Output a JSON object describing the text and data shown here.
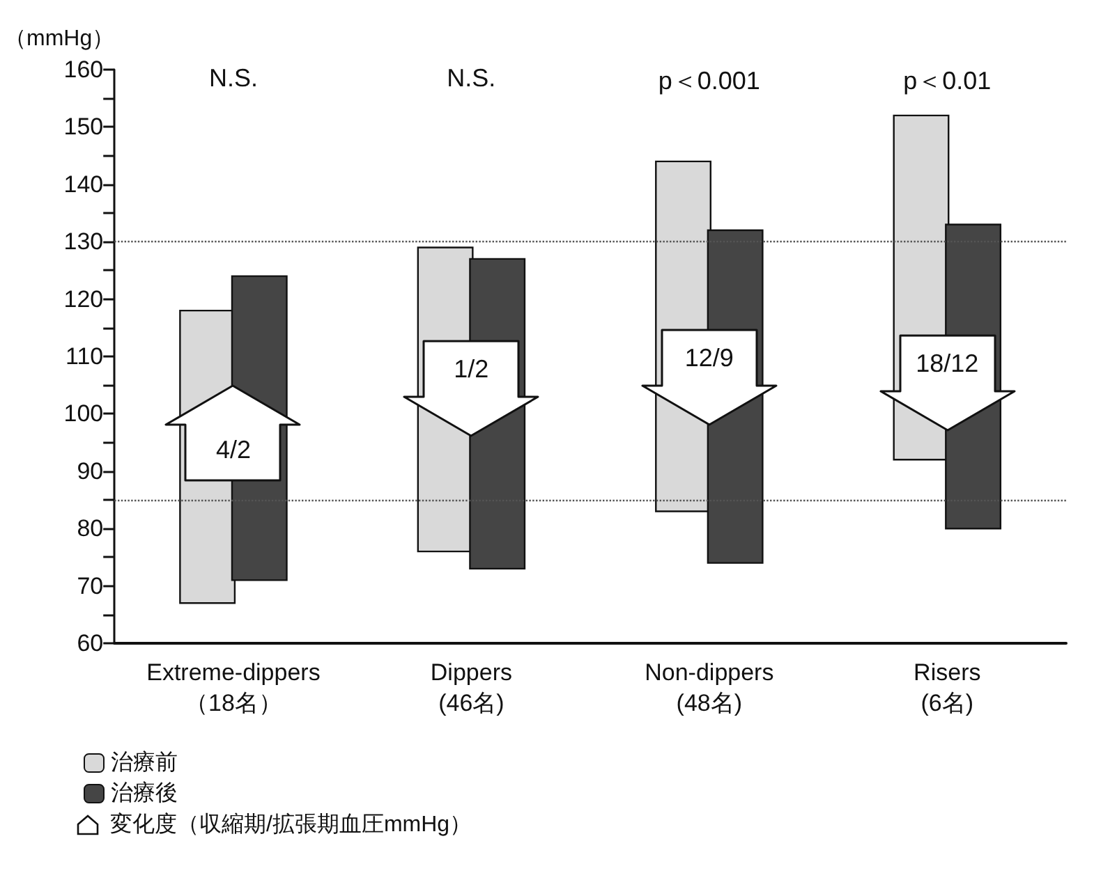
{
  "chart_data": {
    "type": "bar",
    "ylabel": "（mmHg）",
    "categories": [
      "Extreme-dippers\n（18名）",
      "Dippers\n(46名)",
      "Non-dippers\n(48名)",
      "Risers\n(6名)"
    ],
    "series": [
      {
        "name": "治療前",
        "color": "#d9d9d9",
        "base": [
          67,
          76,
          83,
          92
        ],
        "values": [
          51,
          53,
          61,
          60
        ]
      },
      {
        "name": "治療後",
        "color": "#454545",
        "base": [
          71,
          73,
          74,
          80
        ],
        "values": [
          53,
          54,
          58,
          53
        ]
      }
    ],
    "ylim": [
      60,
      160
    ],
    "yticks": [
      60,
      {
        "value": 65,
        "label": null
      },
      70,
      {
        "value": 75,
        "label": null
      },
      80,
      {
        "value": 85,
        "label": null
      },
      90,
      {
        "value": 95,
        "label": null
      },
      100,
      {
        "value": 105,
        "label": null
      },
      110,
      {
        "value": 115,
        "label": null
      },
      120,
      {
        "value": 125,
        "label": null
      },
      130,
      {
        "value": 135,
        "label": null
      },
      140,
      {
        "value": 145,
        "label": null
      },
      150,
      {
        "value": 155,
        "label": null
      },
      160
    ],
    "ref_lines": [
      {
        "axis": "y",
        "value": 130,
        "color": "#555555",
        "line_style": "dotted"
      },
      {
        "axis": "y",
        "value": 85,
        "color": "#555555",
        "line_style": "dotted"
      }
    ],
    "annotations": [
      "N.S.",
      "N.S.",
      "p＜0.001",
      "p＜0.01",
      {
        "text": "4/2",
        "x": "Extreme-dippers\n（18名）",
        "y": 98
      },
      {
        "text": "1/2",
        "x": "Dippers\n(46名)",
        "y": 103
      },
      {
        "text": "12/9",
        "x": "Non-dippers\n(48名)",
        "y": 105
      },
      {
        "text": "18/12",
        "x": "Risers\n(6名)",
        "y": 104
      },
      "変化度（収縮期/拡張期血圧mmHg）"
    ],
    "grid": false,
    "legend": "bottom left"
  }
}
